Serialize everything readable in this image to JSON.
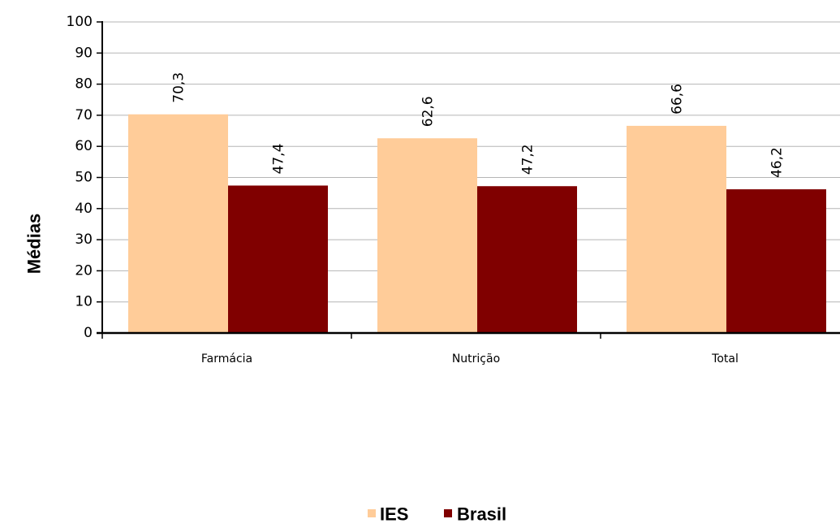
{
  "chart_data": {
    "type": "bar",
    "title": "",
    "xlabel": "",
    "ylabel": "Médias",
    "ylim": [
      0,
      100
    ],
    "yticks": [
      0,
      10,
      20,
      30,
      40,
      50,
      60,
      70,
      80,
      90,
      100
    ],
    "grid": true,
    "legend_position": "bottom",
    "categories": [
      "Farmácia",
      "Nutrição",
      "Total"
    ],
    "series": [
      {
        "name": "IES",
        "values": [
          70.3,
          62.6,
          66.6
        ],
        "labels": [
          "70,3",
          "62,6",
          "66,6"
        ],
        "color": "#FFCC99"
      },
      {
        "name": "Brasil",
        "values": [
          47.4,
          47.2,
          46.2
        ],
        "labels": [
          "47,4",
          "47,2",
          "46,2"
        ],
        "color": "#800000"
      }
    ]
  }
}
